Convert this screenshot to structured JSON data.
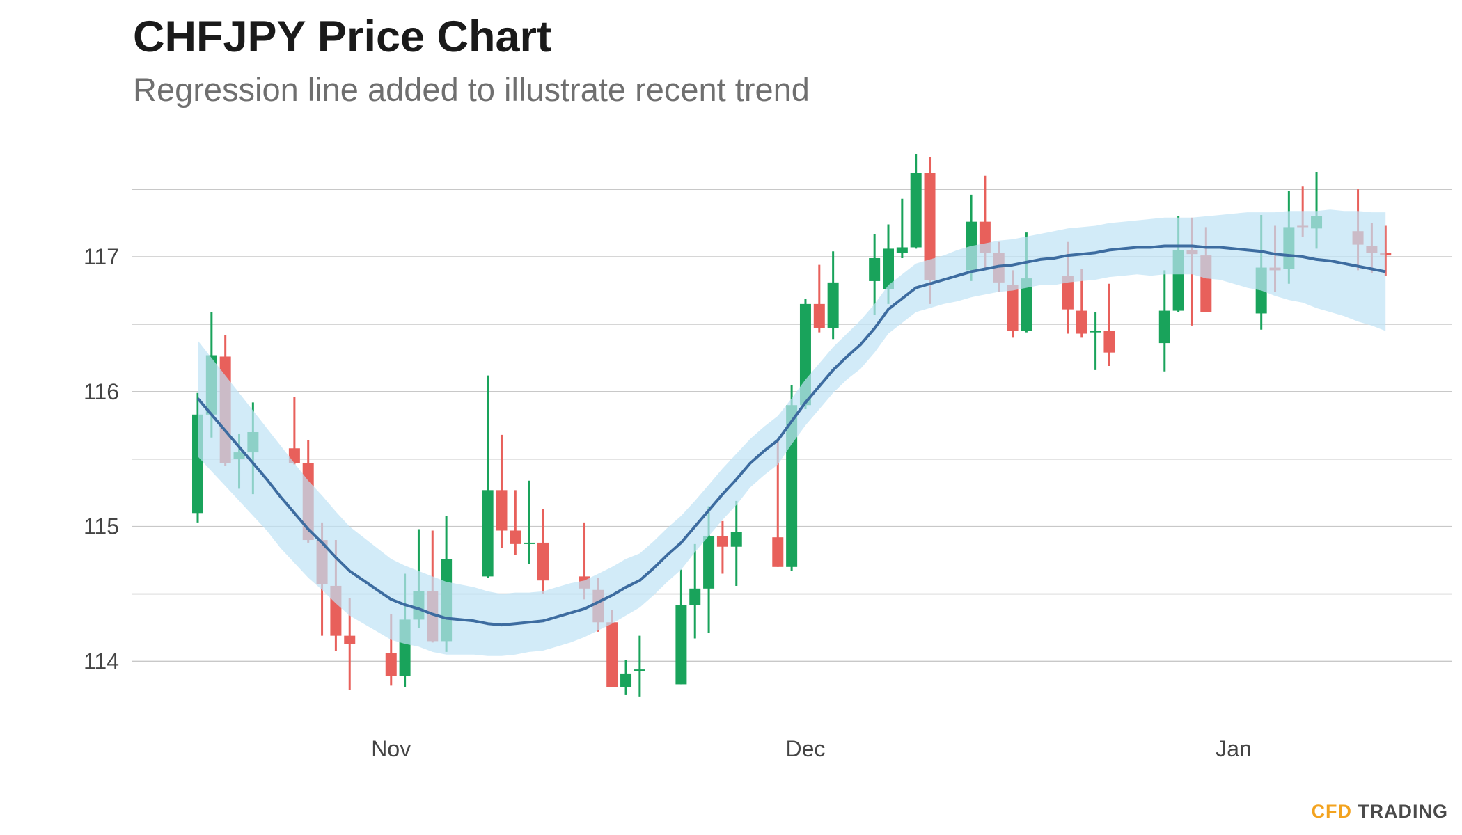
{
  "chart_data": {
    "type": "candlestick",
    "title": "CHFJPY Price Chart",
    "subtitle": "Regression line added to illustrate recent trend",
    "logo": [
      "CFD",
      "TRADING"
    ],
    "categories": [
      null,
      null,
      null,
      null,
      null,
      null,
      null,
      null,
      null,
      null,
      null,
      null,
      null,
      null,
      "Nov",
      null,
      null,
      null,
      null,
      null,
      null,
      null,
      null,
      null,
      null,
      null,
      null,
      null,
      null,
      null,
      null,
      null,
      null,
      null,
      null,
      null,
      null,
      null,
      null,
      null,
      null,
      null,
      null,
      null,
      "Dec",
      null,
      null,
      null,
      null,
      null,
      null,
      null,
      null,
      null,
      null,
      null,
      null,
      null,
      null,
      null,
      null,
      null,
      null,
      null,
      null,
      null,
      null,
      null,
      null,
      null,
      null,
      null,
      null,
      null,
      null,
      "Jan",
      null,
      null,
      null,
      null,
      null,
      null,
      null,
      null,
      null,
      null,
      null
    ],
    "open": [
      115.1,
      115.83,
      116.26,
      115.5,
      115.55,
      null,
      null,
      115.58,
      115.47,
      114.9,
      114.56,
      114.19,
      null,
      null,
      114.06,
      113.89,
      114.31,
      114.52,
      114.15,
      null,
      null,
      114.63,
      115.27,
      114.97,
      114.87,
      114.88,
      null,
      null,
      114.63,
      114.53,
      114.29,
      113.81,
      113.93,
      null,
      null,
      113.83,
      114.42,
      114.54,
      114.93,
      114.85,
      null,
      null,
      114.92,
      114.7,
      115.9,
      116.65,
      116.47,
      null,
      null,
      116.82,
      116.76,
      117.03,
      117.07,
      117.62,
      null,
      null,
      116.9,
      117.26,
      117.03,
      116.79,
      116.45,
      null,
      null,
      116.86,
      116.6,
      116.44,
      116.45,
      null,
      null,
      null,
      116.36,
      116.6,
      117.05,
      117.01,
      null,
      null,
      null,
      116.58,
      116.92,
      116.91,
      117.23,
      117.21,
      null,
      null,
      117.19,
      117.08,
      117.03
    ],
    "high": [
      115.99,
      116.59,
      116.42,
      115.69,
      115.92,
      null,
      null,
      115.96,
      115.64,
      115.03,
      114.9,
      114.47,
      null,
      null,
      114.35,
      114.65,
      114.98,
      114.97,
      115.08,
      null,
      null,
      116.12,
      115.68,
      115.27,
      115.34,
      115.13,
      null,
      null,
      115.03,
      114.62,
      114.38,
      114.01,
      114.19,
      null,
      null,
      114.68,
      114.87,
      115.15,
      115.04,
      115.19,
      null,
      null,
      115.64,
      116.05,
      116.69,
      116.94,
      117.04,
      null,
      null,
      117.17,
      117.24,
      117.43,
      117.76,
      117.74,
      null,
      null,
      117.46,
      117.6,
      117.11,
      116.9,
      117.18,
      null,
      null,
      117.11,
      116.91,
      116.59,
      116.8,
      null,
      null,
      null,
      116.9,
      117.3,
      117.29,
      117.22,
      null,
      null,
      null,
      117.31,
      117.23,
      117.49,
      117.52,
      117.63,
      null,
      null,
      117.5,
      117.25,
      117.23
    ],
    "low": [
      115.03,
      115.66,
      115.45,
      115.28,
      115.24,
      null,
      null,
      115.46,
      114.88,
      114.19,
      114.08,
      113.79,
      null,
      null,
      113.82,
      113.81,
      114.25,
      114.14,
      114.07,
      null,
      null,
      114.62,
      114.84,
      114.79,
      114.72,
      114.5,
      null,
      null,
      114.46,
      114.22,
      113.81,
      113.75,
      113.74,
      null,
      null,
      113.83,
      114.17,
      114.21,
      114.65,
      114.56,
      null,
      null,
      114.7,
      114.67,
      115.87,
      116.44,
      116.39,
      null,
      null,
      116.57,
      116.65,
      116.99,
      117.06,
      116.65,
      null,
      null,
      116.82,
      116.9,
      116.74,
      116.4,
      116.44,
      null,
      null,
      116.43,
      116.4,
      116.16,
      116.19,
      null,
      null,
      null,
      116.15,
      116.59,
      116.49,
      116.59,
      null,
      null,
      null,
      116.46,
      116.74,
      116.8,
      117.15,
      117.06,
      null,
      null,
      116.9,
      116.88,
      116.86
    ],
    "close": [
      115.83,
      116.27,
      115.47,
      115.55,
      115.7,
      null,
      null,
      115.47,
      114.9,
      114.57,
      114.19,
      114.13,
      null,
      null,
      113.89,
      114.31,
      114.52,
      114.15,
      114.76,
      null,
      null,
      115.27,
      114.97,
      114.87,
      114.88,
      114.6,
      null,
      null,
      114.54,
      114.29,
      113.81,
      113.91,
      113.94,
      null,
      null,
      114.42,
      114.54,
      114.93,
      114.85,
      114.96,
      null,
      null,
      114.7,
      115.9,
      116.65,
      116.47,
      116.81,
      null,
      null,
      116.99,
      117.06,
      117.07,
      117.62,
      116.83,
      null,
      null,
      117.26,
      117.03,
      116.81,
      116.45,
      116.84,
      null,
      null,
      116.61,
      116.43,
      116.45,
      116.29,
      null,
      null,
      null,
      116.6,
      117.05,
      117.02,
      116.59,
      null,
      null,
      null,
      116.92,
      116.9,
      117.22,
      117.22,
      117.3,
      null,
      null,
      117.09,
      117.03,
      117.01
    ],
    "up_color": "#19a35b",
    "down_color": "#e8605b",
    "regression": {
      "color": "#3d6ca0",
      "values": [
        115.95,
        115.83,
        115.71,
        115.59,
        115.47,
        115.35,
        115.22,
        115.1,
        114.98,
        114.88,
        114.77,
        114.67,
        114.6,
        114.53,
        114.46,
        114.42,
        114.39,
        114.35,
        114.32,
        114.31,
        114.3,
        114.28,
        114.27,
        114.28,
        114.29,
        114.3,
        114.33,
        114.36,
        114.39,
        114.44,
        114.49,
        114.55,
        114.6,
        114.69,
        114.79,
        114.88,
        115.0,
        115.12,
        115.24,
        115.35,
        115.47,
        115.56,
        115.64,
        115.78,
        115.92,
        116.04,
        116.16,
        116.26,
        116.35,
        116.47,
        116.61,
        116.69,
        116.77,
        116.8,
        116.83,
        116.86,
        116.89,
        116.91,
        116.93,
        116.94,
        116.96,
        116.98,
        116.99,
        117.01,
        117.02,
        117.03,
        117.05,
        117.06,
        117.07,
        117.07,
        117.08,
        117.08,
        117.08,
        117.07,
        117.07,
        117.06,
        117.05,
        117.04,
        117.02,
        117.01,
        117.0,
        116.98,
        116.97,
        116.95,
        116.93,
        116.91,
        116.89
      ]
    },
    "band": {
      "color": "#bfe3f5",
      "upper": [
        116.38,
        116.25,
        116.12,
        115.99,
        115.86,
        115.73,
        115.6,
        115.47,
        115.34,
        115.23,
        115.11,
        115.0,
        114.92,
        114.84,
        114.76,
        114.71,
        114.67,
        114.63,
        114.59,
        114.57,
        114.55,
        114.52,
        114.5,
        114.51,
        114.51,
        114.52,
        114.55,
        114.58,
        114.6,
        114.65,
        114.7,
        114.76,
        114.8,
        114.89,
        114.99,
        115.08,
        115.19,
        115.31,
        115.43,
        115.54,
        115.65,
        115.74,
        115.82,
        115.95,
        116.09,
        116.21,
        116.33,
        116.43,
        116.53,
        116.65,
        116.79,
        116.87,
        116.95,
        116.98,
        117.01,
        117.05,
        117.08,
        117.1,
        117.12,
        117.13,
        117.15,
        117.17,
        117.19,
        117.21,
        117.22,
        117.23,
        117.25,
        117.26,
        117.27,
        117.28,
        117.29,
        117.29,
        117.29,
        117.3,
        117.31,
        117.32,
        117.33,
        117.33,
        117.33,
        117.34,
        117.34,
        117.34,
        117.35,
        117.34,
        117.34,
        117.33,
        117.33
      ],
      "lower": [
        115.52,
        115.41,
        115.3,
        115.19,
        115.08,
        114.97,
        114.84,
        114.73,
        114.62,
        114.53,
        114.43,
        114.34,
        114.28,
        114.22,
        114.16,
        114.13,
        114.11,
        114.07,
        114.05,
        114.05,
        114.05,
        114.04,
        114.04,
        114.05,
        114.07,
        114.08,
        114.11,
        114.14,
        114.18,
        114.23,
        114.28,
        114.34,
        114.4,
        114.49,
        114.59,
        114.68,
        114.81,
        114.93,
        115.05,
        115.16,
        115.29,
        115.38,
        115.46,
        115.61,
        115.75,
        115.87,
        115.99,
        116.09,
        116.17,
        116.29,
        116.43,
        116.51,
        116.59,
        116.62,
        116.65,
        116.67,
        116.7,
        116.72,
        116.74,
        116.75,
        116.77,
        116.79,
        116.79,
        116.81,
        116.82,
        116.83,
        116.85,
        116.86,
        116.87,
        116.86,
        116.87,
        116.87,
        116.87,
        116.84,
        116.83,
        116.8,
        116.77,
        116.75,
        116.71,
        116.68,
        116.66,
        116.62,
        116.59,
        116.56,
        116.52,
        116.49,
        116.45
      ]
    },
    "ylim": [
      113.6,
      117.8
    ],
    "yticks": [
      114,
      115,
      116,
      117
    ],
    "minor_grid": [
      114.5,
      115.5,
      116.5,
      117.5
    ],
    "grid": true
  }
}
